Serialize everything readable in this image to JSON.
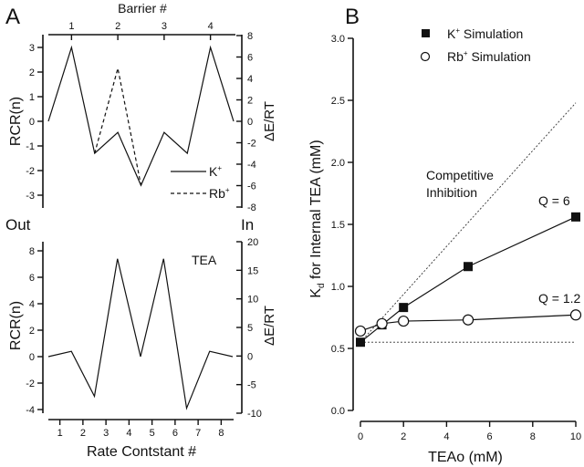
{
  "chart_data": [
    {
      "panel": "A",
      "subplot": "top",
      "type": "line",
      "panel_label": "A",
      "top_xlabel": "Barrier #",
      "top_xticks": [
        "1",
        "2",
        "3",
        "4"
      ],
      "top_xtick_values": [
        1,
        2,
        3,
        4
      ],
      "xlim": [
        0.5,
        4.5
      ],
      "ylabel": "RCR(n)",
      "ylim": [
        -3.5,
        3.5
      ],
      "yticks": [
        3,
        2,
        1,
        0,
        -1,
        -2,
        -3
      ],
      "ytick_labels": [
        "3",
        "2",
        "1",
        "0",
        "-1",
        "-2",
        "-3"
      ],
      "right_ylabel": "ΔE/RT",
      "right_ylim": [
        -8,
        8
      ],
      "right_yticks": [
        8,
        6,
        4,
        2,
        0,
        -2,
        -4,
        -6,
        -8
      ],
      "right_ytick_labels": [
        "8",
        "6",
        "4",
        "2",
        "0",
        "-2",
        "-4",
        "-6",
        "-8"
      ],
      "series": [
        {
          "name": "K+",
          "label_base": "K",
          "label_sup": "+",
          "style": "solid",
          "x": [
            0.5,
            1,
            1.5,
            2,
            2.5,
            3,
            3.5,
            4,
            4.5
          ],
          "y": [
            0,
            3,
            -1.3,
            -0.45,
            -2.6,
            -0.45,
            -1.3,
            3,
            0
          ]
        },
        {
          "name": "Rb+",
          "label_base": "Rb",
          "label_sup": "+",
          "style": "dashed",
          "x": [
            1.5,
            2,
            2.5
          ],
          "y": [
            -1.3,
            2.15,
            -2.6
          ]
        }
      ],
      "legend": "bottom-right",
      "bottom_left_label": "Out",
      "bottom_right_label": "In"
    },
    {
      "panel": "A",
      "subplot": "bottom",
      "type": "line",
      "xlabel": "Rate Contstant #",
      "xticks": [
        "1",
        "2",
        "3",
        "4",
        "5",
        "6",
        "7",
        "8"
      ],
      "xtick_values": [
        1,
        2,
        3,
        4,
        5,
        6,
        7,
        8
      ],
      "xlim": [
        0.5,
        8.5
      ],
      "ylabel": "RCR(n)",
      "ylim": [
        -4.4,
        8.7
      ],
      "yticks": [
        8,
        6,
        4,
        2,
        0,
        -2,
        -4
      ],
      "ytick_labels": [
        "8",
        "6",
        "4",
        "2",
        "0",
        "-2",
        "-4"
      ],
      "right_ylabel": "ΔE/RT",
      "right_ylim": [
        -10,
        20
      ],
      "right_yticks": [
        20,
        15,
        10,
        5,
        0,
        -5,
        -10
      ],
      "right_ytick_labels": [
        "20",
        "15",
        "10",
        "5",
        "0",
        "-5",
        "-10"
      ],
      "annotation": "TEA",
      "series": [
        {
          "name": "TEA",
          "style": "solid",
          "x": [
            0.5,
            1.5,
            2.5,
            3.5,
            4.5,
            5.5,
            6.5,
            7.5,
            8.5
          ],
          "y": [
            0,
            0.4,
            -3.0,
            7.4,
            0,
            7.4,
            -3.9,
            0.4,
            0
          ]
        }
      ]
    },
    {
      "panel": "B",
      "type": "scatter",
      "panel_label": "B",
      "xlabel": "TEAo (mM)",
      "ylabel_base": "K",
      "ylabel_sub": "d",
      "ylabel_rest": " for Internal TEA (mM)",
      "xlim": [
        0,
        10
      ],
      "xticks": [
        0,
        2,
        4,
        6,
        8,
        10
      ],
      "xtick_labels": [
        "0",
        "2",
        "4",
        "6",
        "8",
        "10"
      ],
      "ylim": [
        0,
        3.0
      ],
      "yticks": [
        0,
        0.5,
        1.0,
        1.5,
        2.0,
        2.5,
        3.0
      ],
      "ytick_labels": [
        "0.0",
        "0.5",
        "1.0",
        "1.5",
        "2.0",
        "2.5",
        "3.0"
      ],
      "series": [
        {
          "name": "K+ Simulation",
          "label_base": "K",
          "label_sup": "+",
          "label_rest": " Simulation",
          "marker": "filled-square",
          "x": [
            0,
            1,
            2,
            5,
            10
          ],
          "y": [
            0.55,
            0.69,
            0.83,
            1.16,
            1.56
          ]
        },
        {
          "name": "Rb+ Simulation",
          "label_base": "Rb",
          "label_sup": "+",
          "label_rest": " Simulation",
          "marker": "open-circle",
          "x": [
            0,
            1,
            2,
            5,
            10
          ],
          "y": [
            0.64,
            0.7,
            0.72,
            0.73,
            0.77
          ]
        }
      ],
      "reference_lines": [
        {
          "name": "Competitive Inhibition",
          "style": "dotted",
          "x": [
            0,
            10
          ],
          "y": [
            0.55,
            2.48
          ]
        },
        {
          "name": "baseline",
          "style": "dotted",
          "x": [
            0,
            10
          ],
          "y": [
            0.55,
            0.55
          ]
        }
      ],
      "annotations": {
        "competitive_line1": "Competitive",
        "competitive_line2": "Inhibition",
        "q_k": "Q = 6",
        "q_rb": "Q = 1.2"
      },
      "legend": "top-left"
    }
  ]
}
